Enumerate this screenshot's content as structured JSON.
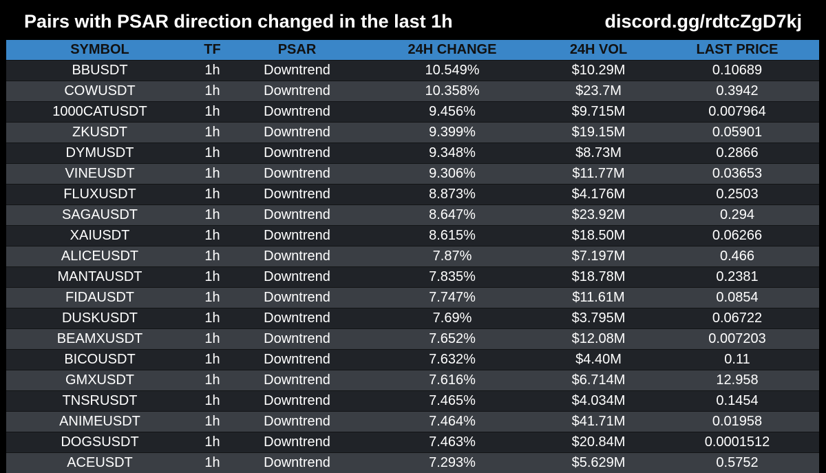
{
  "header": {
    "title": "Pairs with PSAR direction changed in the last 1h",
    "link": "discord.gg/rdtcZgD7kj"
  },
  "colors": {
    "background": "#000000",
    "header_row": "#3a86c8",
    "row_dark": "#202328",
    "row_light": "#3a3e44",
    "text": "#ffffff"
  },
  "table": {
    "columns": [
      "SYMBOL",
      "TF",
      "PSAR",
      "24H CHANGE",
      "24H VOL",
      "LAST PRICE"
    ],
    "rows": [
      [
        "BBUSDT",
        "1h",
        "Downtrend",
        "10.549%",
        "$10.29M",
        "0.10689"
      ],
      [
        "COWUSDT",
        "1h",
        "Downtrend",
        "10.358%",
        "$23.7M",
        "0.3942"
      ],
      [
        "1000CATUSDT",
        "1h",
        "Downtrend",
        "9.456%",
        "$9.715M",
        "0.007964"
      ],
      [
        "ZKUSDT",
        "1h",
        "Downtrend",
        "9.399%",
        "$19.15M",
        "0.05901"
      ],
      [
        "DYMUSDT",
        "1h",
        "Downtrend",
        "9.348%",
        "$8.73M",
        "0.2866"
      ],
      [
        "VINEUSDT",
        "1h",
        "Downtrend",
        "9.306%",
        "$11.77M",
        "0.03653"
      ],
      [
        "FLUXUSDT",
        "1h",
        "Downtrend",
        "8.873%",
        "$4.176M",
        "0.2503"
      ],
      [
        "SAGAUSDT",
        "1h",
        "Downtrend",
        "8.647%",
        "$23.92M",
        "0.294"
      ],
      [
        "XAIUSDT",
        "1h",
        "Downtrend",
        "8.615%",
        "$18.50M",
        "0.06266"
      ],
      [
        "ALICEUSDT",
        "1h",
        "Downtrend",
        "7.87%",
        "$7.197M",
        "0.466"
      ],
      [
        "MANTAUSDT",
        "1h",
        "Downtrend",
        "7.835%",
        "$18.78M",
        "0.2381"
      ],
      [
        "FIDAUSDT",
        "1h",
        "Downtrend",
        "7.747%",
        "$11.61M",
        "0.0854"
      ],
      [
        "DUSKUSDT",
        "1h",
        "Downtrend",
        "7.69%",
        "$3.795M",
        "0.06722"
      ],
      [
        "BEAMXUSDT",
        "1h",
        "Downtrend",
        "7.652%",
        "$12.08M",
        "0.007203"
      ],
      [
        "BICOUSDT",
        "1h",
        "Downtrend",
        "7.632%",
        "$4.40M",
        "0.11"
      ],
      [
        "GMXUSDT",
        "1h",
        "Downtrend",
        "7.616%",
        "$6.714M",
        "12.958"
      ],
      [
        "TNSRUSDT",
        "1h",
        "Downtrend",
        "7.465%",
        "$4.034M",
        "0.1454"
      ],
      [
        "ANIMEUSDT",
        "1h",
        "Downtrend",
        "7.464%",
        "$41.71M",
        "0.01958"
      ],
      [
        "DOGSUSDT",
        "1h",
        "Downtrend",
        "7.463%",
        "$20.84M",
        "0.0001512"
      ],
      [
        "ACEUSDT",
        "1h",
        "Downtrend",
        "7.293%",
        "$5.629M",
        "0.5752"
      ]
    ]
  }
}
